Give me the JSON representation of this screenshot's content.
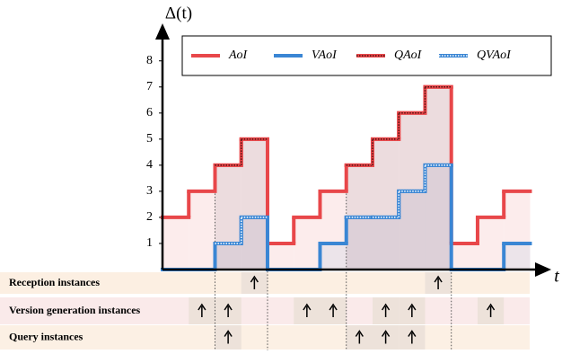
{
  "chart_data": {
    "type": "step",
    "y_label": "Δ(t)",
    "x_label": "t",
    "x": [
      0,
      1,
      2,
      3,
      4,
      5,
      6,
      7,
      8,
      9,
      10,
      11,
      12,
      13
    ],
    "xlim": [
      0,
      14.6
    ],
    "ylim": [
      0,
      9.3
    ],
    "yticks": [
      1,
      2,
      3,
      4,
      5,
      6,
      7,
      8
    ],
    "series": [
      {
        "name": "AoI",
        "color": "#e8474a",
        "area": "#fcecec",
        "dotted": false,
        "values": [
          2,
          3,
          4,
          5,
          1,
          2,
          3,
          4,
          5,
          6,
          7,
          1,
          2,
          3
        ]
      },
      {
        "name": "VAoI",
        "color": "#3a86d4",
        "area": "#ece4ea",
        "dotted": false,
        "values": [
          0,
          0,
          1,
          2,
          0,
          0,
          1,
          2,
          2,
          3,
          4,
          0,
          0,
          1
        ]
      },
      {
        "name": "QAoI",
        "color": "#e8474a",
        "area": "#e6d6d8",
        "dotted": true,
        "values": [
          null,
          null,
          4,
          5,
          null,
          null,
          null,
          4,
          5,
          6,
          7,
          null,
          null,
          null
        ]
      },
      {
        "name": "QVAoI",
        "color": "#3a86d4",
        "area": "#d9ccd6",
        "dotted": true,
        "values": [
          null,
          null,
          1,
          2,
          null,
          null,
          null,
          2,
          2,
          3,
          4,
          null,
          null,
          null
        ]
      }
    ],
    "instance_rows": [
      {
        "label": "Reception instances",
        "background": "#fcefe2",
        "x": [
          3,
          10
        ]
      },
      {
        "label": "Version generation instances",
        "background": "#faeaea",
        "x": [
          1,
          2,
          5,
          6,
          8,
          9,
          12
        ]
      },
      {
        "label": "Query instances",
        "background": "#fcf0e4",
        "x": [
          2,
          7,
          8,
          9
        ]
      }
    ]
  }
}
